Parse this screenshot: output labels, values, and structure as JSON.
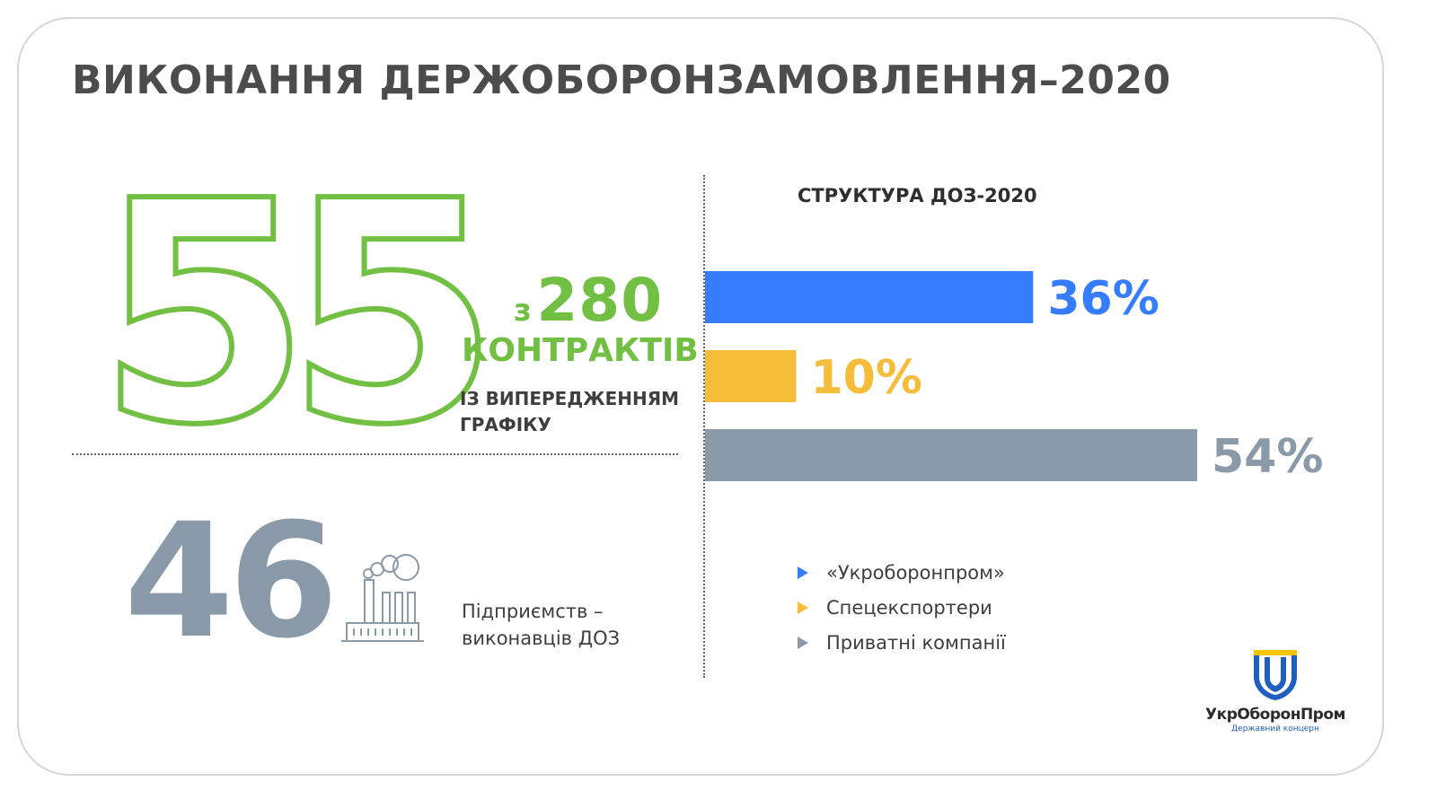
{
  "title": "ВИКОНАННЯ ДЕРЖОБОРОНЗАМОВЛЕННЯ–2020",
  "contracts": {
    "count": "55",
    "of_prefix": "з",
    "total": "280",
    "label": "КОНТРАКТІВ",
    "note": "ІЗ ВИПЕРЕДЖЕННЯМ ГРАФІКУ"
  },
  "enterprises": {
    "count": "46",
    "label": "Підприємств – виконавців ДОЗ",
    "icon": "factory-icon"
  },
  "chart_data": {
    "type": "bar",
    "orientation": "horizontal",
    "title": "СТРУКТУРА ДОЗ-2020",
    "categories": [
      "«Укроборонпром»",
      "Спецекспортери",
      "Приватні компанії"
    ],
    "values": [
      36,
      10,
      54
    ],
    "value_labels": [
      "36%",
      "10%",
      "54%"
    ],
    "colors": [
      "#367cff",
      "#f5bd3a",
      "#8a9aa8"
    ],
    "xlim": [
      0,
      54
    ],
    "legend_position": "bottom"
  },
  "colors": {
    "green": "#72c043",
    "gray": "#8a9aa8",
    "blue": "#367cff",
    "yellow": "#f5bd3a"
  },
  "logo": {
    "name": "УкрОборонПром",
    "subtitle": "Державний концерн"
  }
}
